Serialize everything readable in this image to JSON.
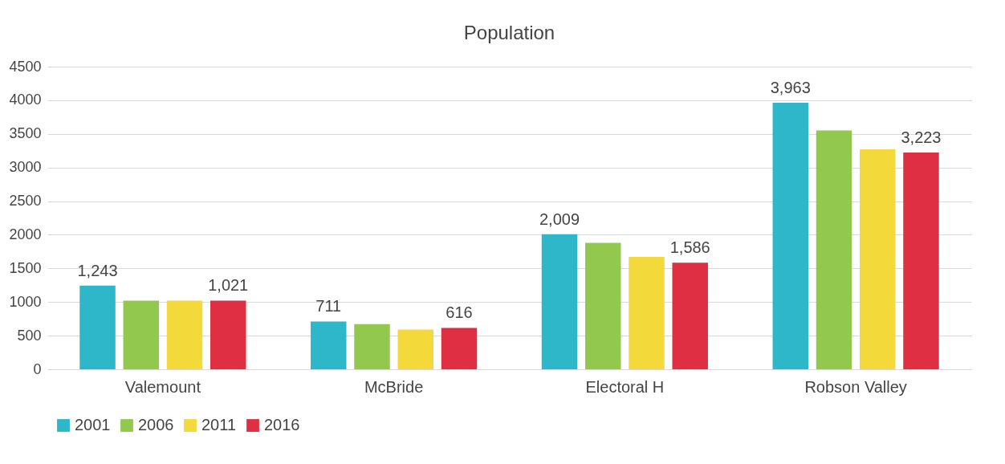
{
  "chart_data": {
    "type": "bar",
    "title": "Population",
    "categories": [
      "Valemount",
      "McBride",
      "Electoral H",
      "Robson Valley"
    ],
    "series": [
      {
        "name": "2001",
        "color": "#2db7c8",
        "values": [
          1243,
          711,
          2009,
          3963
        ],
        "value_labels": [
          "1,243",
          "711",
          "2,009",
          "3,963"
        ]
      },
      {
        "name": "2006",
        "color": "#92c84e",
        "values": [
          1020,
          670,
          1880,
          3550
        ]
      },
      {
        "name": "2011",
        "color": "#f3d93a",
        "values": [
          1020,
          590,
          1670,
          3270
        ]
      },
      {
        "name": "2016",
        "color": "#df2f42",
        "values": [
          1021,
          616,
          1586,
          3223
        ],
        "value_labels": [
          "1,021",
          "616",
          "1,586",
          "3,223"
        ]
      }
    ],
    "ylim": [
      0,
      4500
    ],
    "yticks": [
      0,
      500,
      1000,
      1500,
      2000,
      2500,
      3000,
      3500,
      4000,
      4500
    ],
    "grid": "y",
    "legend": "bottom"
  }
}
